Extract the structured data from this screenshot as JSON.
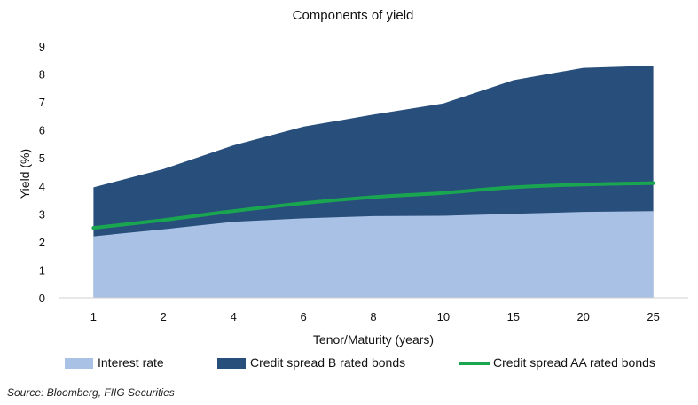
{
  "chart_data": {
    "type": "area",
    "title": "Components of yield",
    "xlabel": "Tenor/Maturity (years)",
    "ylabel": "Yield (%)",
    "categories": [
      "1",
      "2",
      "4",
      "6",
      "8",
      "10",
      "15",
      "20",
      "25"
    ],
    "ylim": [
      0,
      9
    ],
    "yticks": [
      "0",
      "1",
      "2",
      "3",
      "4",
      "5",
      "6",
      "7",
      "8",
      "9"
    ],
    "grid": false,
    "legend_position": "bottom",
    "series": [
      {
        "name": "Interest rate",
        "kind": "area",
        "color": "#a9c1e4",
        "values": [
          2.2,
          2.45,
          2.72,
          2.84,
          2.92,
          2.93,
          3.0,
          3.07,
          3.1
        ]
      },
      {
        "name": "Credit spread B rated bonds",
        "kind": "area",
        "color": "#284e7b",
        "values": [
          3.95,
          4.6,
          5.45,
          6.12,
          6.55,
          6.95,
          7.78,
          8.22,
          8.3
        ]
      },
      {
        "name": "Credit spread AA rated bonds",
        "kind": "line",
        "color": "#1aa550",
        "values": [
          2.5,
          2.78,
          3.1,
          3.38,
          3.6,
          3.75,
          3.95,
          4.05,
          4.1
        ]
      }
    ]
  },
  "source": "Source: Bloomberg, FIIG Securities"
}
